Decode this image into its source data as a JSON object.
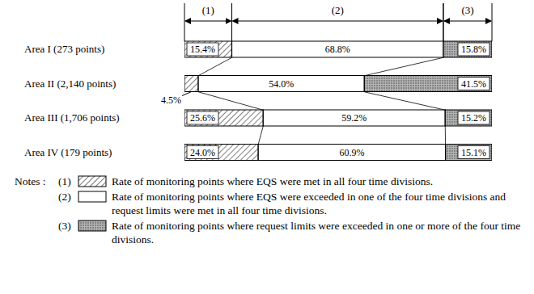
{
  "chart_data": {
    "type": "bar",
    "orientation": "horizontal",
    "stacked": true,
    "data_labels": true,
    "tick_labels": "y",
    "categories": [
      "Area I (273 points)",
      "Area II (2,140 points)",
      "Area III (1,706 points)",
      "Area IV (179 points)"
    ],
    "xlim": [
      0,
      100
    ],
    "legend_title": "Notes :",
    "series": [
      {
        "name": "Rate of monitoring points where EQS were met in all four time divisions.",
        "label": "(1)",
        "color": "#ffffff",
        "values": [
          15.4,
          4.5,
          25.6,
          24.0
        ],
        "value_labels": [
          "15.4%",
          "4.5%",
          "25.6%",
          "24.0%"
        ]
      },
      {
        "name": "Rate of monitoring points where EQS were exceeded in one of the four time divisions and request limits were met in all four time divisions.",
        "label": "(2)",
        "color": "#ffffff",
        "values": [
          68.8,
          54.0,
          59.2,
          60.9
        ],
        "value_labels": [
          "68.8%",
          "54.0%",
          "59.2%",
          "60.9%"
        ]
      },
      {
        "name": "Rate of monitoring points where request limits were exceeded in one or more of the four time divisions.",
        "label": "(3)",
        "color": "#b4b4b4",
        "values": [
          15.8,
          41.5,
          15.2,
          15.1
        ],
        "value_labels": [
          "15.8%",
          "41.5%",
          "15.2%",
          "15.1%"
        ]
      }
    ]
  }
}
